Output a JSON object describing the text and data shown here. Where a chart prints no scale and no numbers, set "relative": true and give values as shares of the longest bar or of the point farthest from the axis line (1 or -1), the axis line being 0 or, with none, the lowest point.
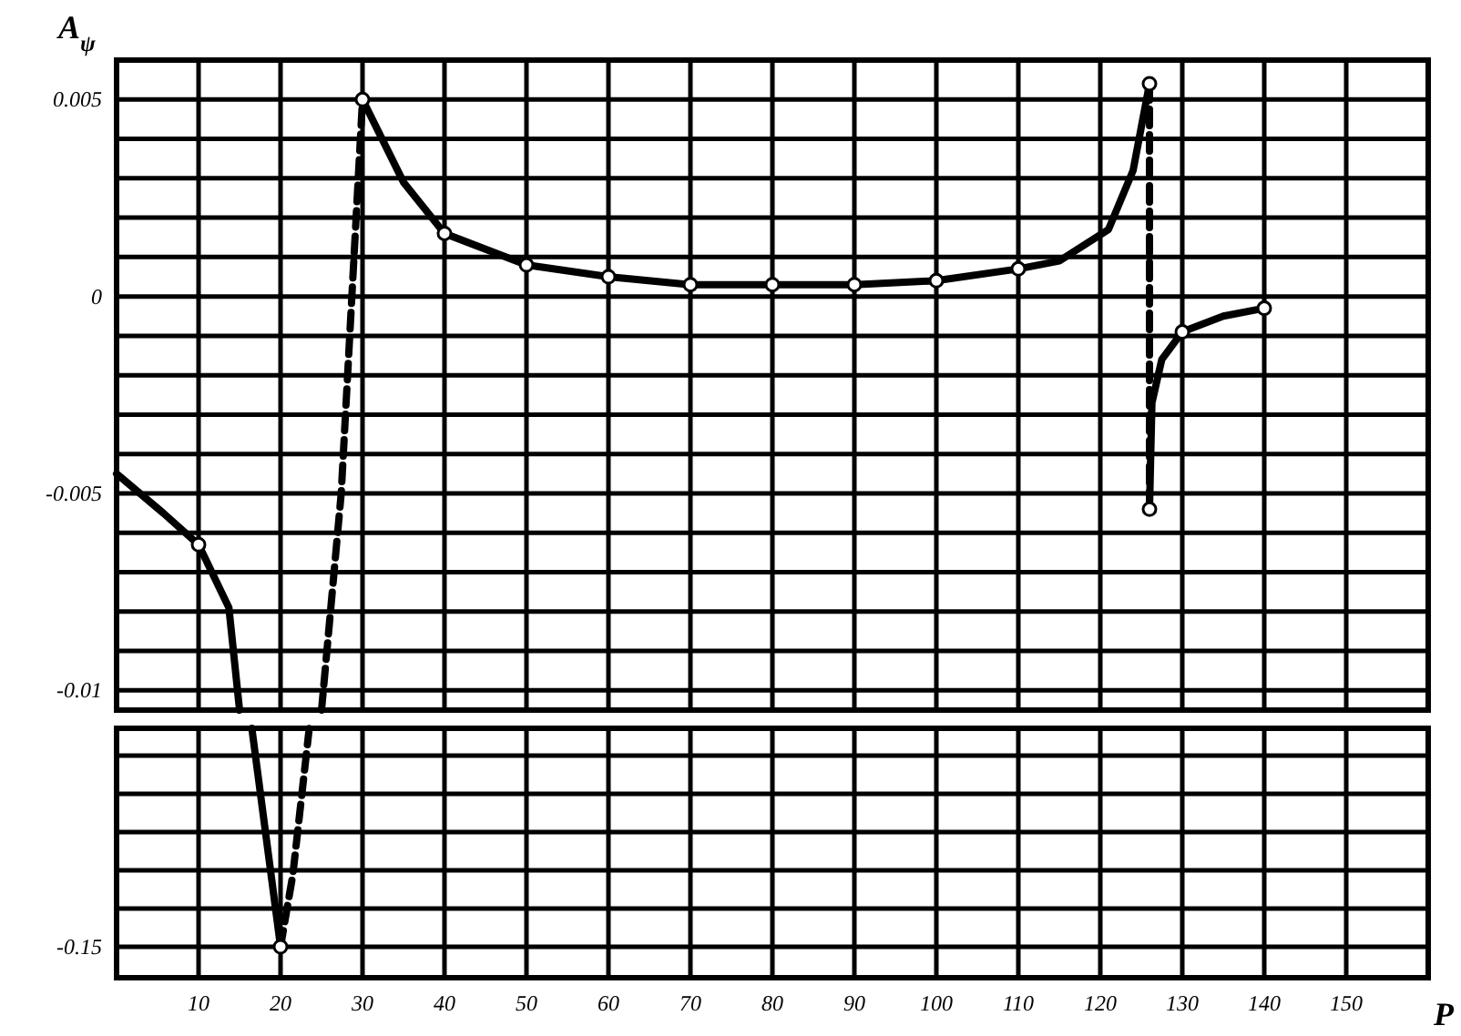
{
  "chart_data": [
    {
      "type": "line",
      "ylabel": "A$_{ψ}$",
      "xlim": [
        0,
        160
      ],
      "xticks": [
        {
          "value": 10,
          "label": null
        },
        {
          "value": 20,
          "label": null
        },
        {
          "value": 30,
          "label": null
        },
        {
          "value": 40,
          "label": null
        },
        {
          "value": 50,
          "label": null
        },
        {
          "value": 60,
          "label": null
        },
        {
          "value": 70,
          "label": null
        },
        {
          "value": 80,
          "label": null
        },
        {
          "value": 90,
          "label": null
        },
        {
          "value": 100,
          "label": null
        },
        {
          "value": 110,
          "label": null
        },
        {
          "value": 120,
          "label": null
        },
        {
          "value": 130,
          "label": null
        },
        {
          "value": 140,
          "label": null
        },
        {
          "value": 150,
          "label": null
        }
      ],
      "ylim": [
        -0.0105,
        0.006
      ],
      "yticks": [
        {
          "value": 0.006,
          "label": null
        },
        0.005,
        {
          "value": 0.004,
          "label": null
        },
        {
          "value": 0.003,
          "label": null
        },
        {
          "value": 0.002,
          "label": null
        },
        {
          "value": 0.001,
          "label": null
        },
        0,
        {
          "value": -0.001,
          "label": null
        },
        {
          "value": -0.002,
          "label": null
        },
        {
          "value": -0.003,
          "label": null
        },
        {
          "value": -0.004,
          "label": null
        },
        -0.005,
        {
          "value": -0.006,
          "label": null
        },
        {
          "value": -0.007,
          "label": null
        },
        {
          "value": -0.008,
          "label": null
        },
        {
          "value": -0.009,
          "label": null
        },
        -0.01
      ],
      "grid": true,
      "tick_labels": "y",
      "series": [
        {
          "color": "#000000",
          "line_style": "solid",
          "x": [
            0,
            5.7,
            10,
            13.7,
            15
          ],
          "values": [
            -0.0045,
            -0.0055,
            -0.0063,
            -0.0079,
            -0.0105
          ]
        },
        {
          "color": "#000000",
          "line_style": "dashed",
          "x": [
            25,
            27.4,
            28.7,
            30
          ],
          "values": [
            -0.0105,
            -0.005,
            0,
            0.005
          ]
        },
        {
          "color": "#000000",
          "line_style": "solid",
          "x": [
            30,
            35,
            40,
            50,
            60,
            70,
            80,
            90,
            100,
            110,
            115,
            121,
            124,
            126
          ],
          "values": [
            0.005,
            0.0029,
            0.0016,
            0.0008,
            0.0005,
            0.0003,
            0.0003,
            0.0003,
            0.0004,
            0.0007,
            0.0009,
            0.0017,
            0.0032,
            0.0054
          ]
        },
        {
          "color": "#000000",
          "line_style": "dashed",
          "x": [
            126,
            126
          ],
          "values": [
            0.0054,
            -0.0054
          ]
        },
        {
          "color": "#000000",
          "line_style": "solid",
          "x": [
            126,
            126.3,
            127.5,
            130,
            135,
            140
          ],
          "values": [
            -0.0054,
            -0.0027,
            -0.0016,
            -0.0009,
            -0.0005,
            -0.0003
          ]
        },
        {
          "type": "scatter",
          "marker": "circle",
          "color": "#000000",
          "x": [
            10,
            30,
            40,
            50,
            60,
            70,
            80,
            90,
            100,
            110,
            126,
            126,
            130,
            140
          ],
          "values": [
            -0.0063,
            0.005,
            0.0016,
            0.0008,
            0.0005,
            0.0003,
            0.0003,
            0.0003,
            0.0004,
            0.0007,
            0.0054,
            -0.0054,
            -0.0009,
            -0.0003
          ]
        }
      ]
    },
    {
      "type": "line",
      "xlabel": "P",
      "xlim": [
        0,
        160
      ],
      "xticks": [
        10,
        20,
        30,
        40,
        50,
        60,
        70,
        80,
        90,
        100,
        110,
        120,
        130,
        140,
        150
      ],
      "relative": true,
      "annotations": [
        "-0.15"
      ],
      "grid": true,
      "series": [
        {
          "color": "#000000",
          "line_style": "solid",
          "x": [
            16.5,
            20
          ],
          "values": [
            1,
            0
          ]
        },
        {
          "color": "#000000",
          "line_style": "dashed",
          "x": [
            20,
            21.5,
            23.5
          ],
          "values": [
            0,
            0.33,
            1
          ]
        },
        {
          "type": "scatter",
          "marker": "circle",
          "color": "#000000",
          "x": [
            20
          ],
          "values": [
            0
          ]
        }
      ]
    }
  ]
}
